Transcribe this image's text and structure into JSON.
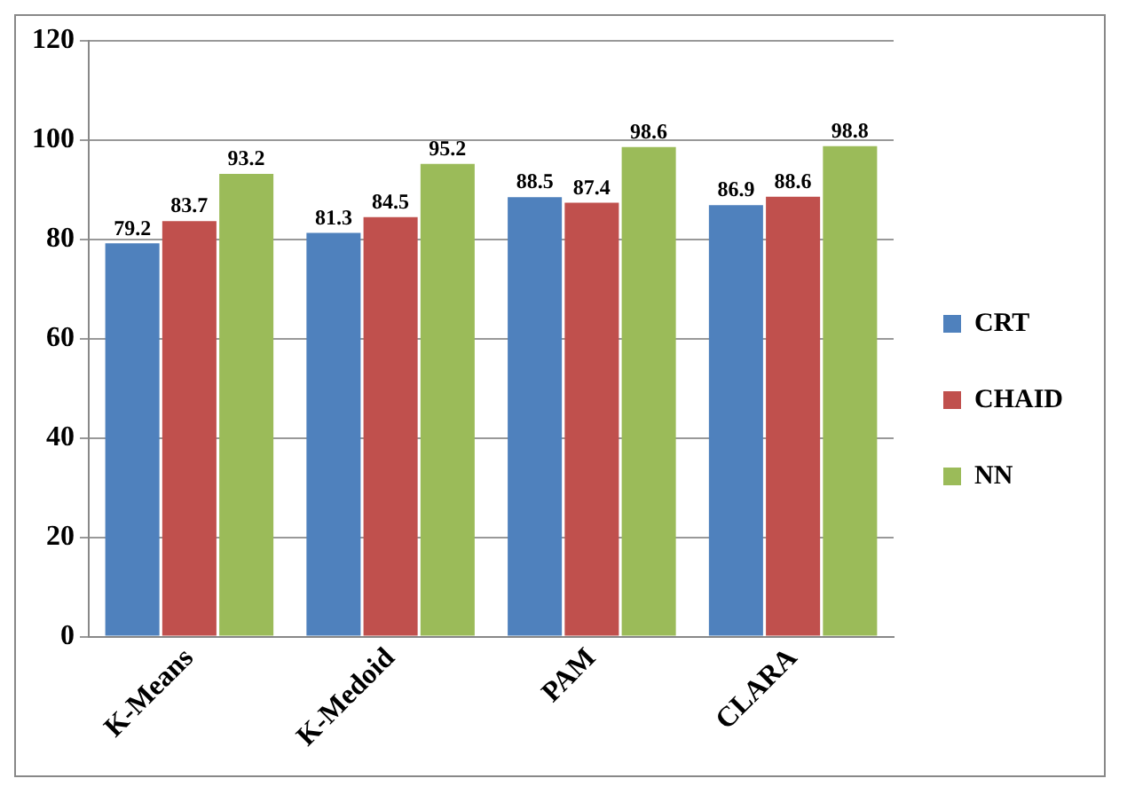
{
  "chart_data": {
    "type": "bar",
    "categories": [
      "K-Means",
      "K-Medoid",
      "PAM",
      "CLARA"
    ],
    "series": [
      {
        "name": "CRT",
        "color": "#4f81bd",
        "values": [
          79.2,
          81.3,
          88.5,
          86.9
        ]
      },
      {
        "name": "CHAID",
        "color": "#c0504d",
        "values": [
          83.7,
          84.5,
          87.4,
          88.6
        ]
      },
      {
        "name": "NN",
        "color": "#9bbb59",
        "values": [
          93.2,
          95.2,
          98.6,
          98.8
        ]
      }
    ],
    "ylim": [
      0,
      120
    ],
    "yticks": [
      0,
      20,
      40,
      60,
      80,
      100,
      120
    ],
    "grid": "y",
    "legend": "right",
    "data_labels": true
  }
}
